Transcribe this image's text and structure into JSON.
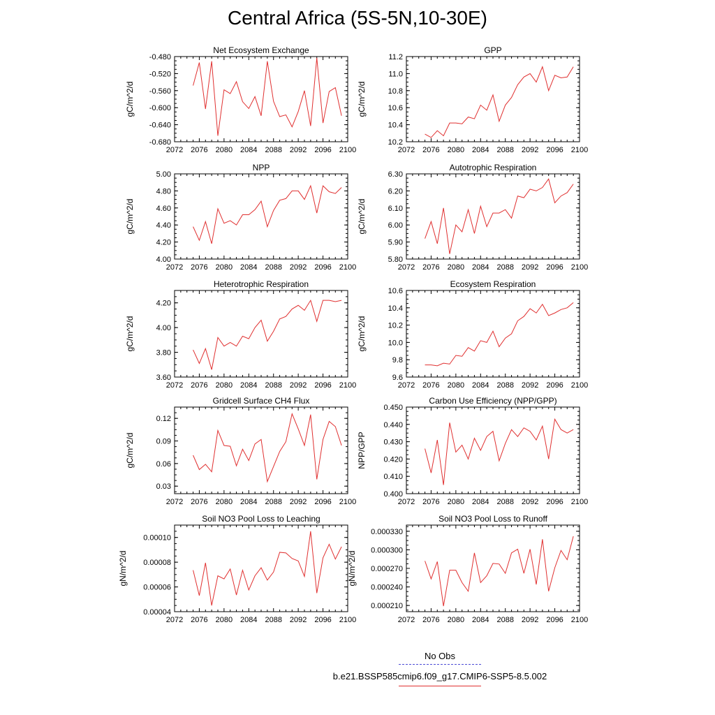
{
  "page": {
    "title": "Central Africa (5S-5N,10-30E)"
  },
  "legend": {
    "items": [
      {
        "label": "No Obs",
        "color": "#4b4bd6",
        "dash": "dashed"
      },
      {
        "label": "b.e21.BSSP585cmip6.f09_g17.CMIP6-SSP5-8.5.002",
        "color": "#e03030",
        "dash": "solid"
      }
    ]
  },
  "chart_data": [
    {
      "type": "line",
      "title": "Net Ecosystem Exchange",
      "ylabel": "gC/m^2/d",
      "xlabel": "",
      "xlim": [
        2072,
        2100
      ],
      "ylim": [
        -0.68,
        -0.48
      ],
      "xticks": [
        "2072",
        "2076",
        "2080",
        "2084",
        "2088",
        "2092",
        "2096",
        "2100"
      ],
      "yticks": [
        "-0.480",
        "-0.520",
        "-0.560",
        "-0.600",
        "-0.640",
        "-0.680"
      ],
      "grid": false,
      "x": [
        2075,
        2076,
        2077,
        2078,
        2079,
        2080,
        2081,
        2082,
        2083,
        2084,
        2085,
        2086,
        2087,
        2088,
        2089,
        2090,
        2091,
        2092,
        2093,
        2094,
        2095,
        2096,
        2097,
        2098,
        2099
      ],
      "series": [
        {
          "color": "#e03030",
          "values": [
            -0.548,
            -0.494,
            -0.603,
            -0.491,
            -0.666,
            -0.558,
            -0.567,
            -0.539,
            -0.586,
            -0.602,
            -0.574,
            -0.619,
            -0.491,
            -0.585,
            -0.621,
            -0.617,
            -0.645,
            -0.609,
            -0.56,
            -0.643,
            -0.483,
            -0.636,
            -0.562,
            -0.553,
            -0.619
          ]
        }
      ]
    },
    {
      "type": "line",
      "title": "GPP",
      "ylabel": "gC/m^2/d",
      "xlabel": "",
      "xlim": [
        2072,
        2100
      ],
      "ylim": [
        10.2,
        11.2
      ],
      "xticks": [
        "2072",
        "2076",
        "2080",
        "2084",
        "2088",
        "2092",
        "2096",
        "2100"
      ],
      "yticks": [
        "11.2",
        "11.0",
        "10.8",
        "10.6",
        "10.4",
        "10.2"
      ],
      "grid": false,
      "x": [
        2075,
        2076,
        2077,
        2078,
        2079,
        2080,
        2081,
        2082,
        2083,
        2084,
        2085,
        2086,
        2087,
        2088,
        2089,
        2090,
        2091,
        2092,
        2093,
        2094,
        2095,
        2096,
        2097,
        2098,
        2099
      ],
      "series": [
        {
          "color": "#e03030",
          "values": [
            10.29,
            10.25,
            10.33,
            10.27,
            10.42,
            10.42,
            10.41,
            10.49,
            10.47,
            10.63,
            10.57,
            10.75,
            10.44,
            10.63,
            10.72,
            10.87,
            10.96,
            11.0,
            10.9,
            11.08,
            10.8,
            10.98,
            10.95,
            10.96,
            11.08
          ]
        }
      ]
    },
    {
      "type": "line",
      "title": "NPP",
      "ylabel": "gC/m^2/d",
      "xlabel": "",
      "xlim": [
        2072,
        2100
      ],
      "ylim": [
        4.0,
        5.0
      ],
      "xticks": [
        "2072",
        "2076",
        "2080",
        "2084",
        "2088",
        "2092",
        "2096",
        "2100"
      ],
      "yticks": [
        "5.00",
        "4.80",
        "4.60",
        "4.40",
        "4.20",
        "4.00"
      ],
      "grid": false,
      "x": [
        2075,
        2076,
        2077,
        2078,
        2079,
        2080,
        2081,
        2082,
        2083,
        2084,
        2085,
        2086,
        2087,
        2088,
        2089,
        2090,
        2091,
        2092,
        2093,
        2094,
        2095,
        2096,
        2097,
        2098,
        2099
      ],
      "series": [
        {
          "color": "#e03030",
          "values": [
            4.38,
            4.22,
            4.44,
            4.18,
            4.59,
            4.42,
            4.45,
            4.4,
            4.52,
            4.52,
            4.58,
            4.68,
            4.38,
            4.57,
            4.69,
            4.71,
            4.8,
            4.8,
            4.7,
            4.86,
            4.54,
            4.86,
            4.79,
            4.77,
            4.84
          ]
        }
      ]
    },
    {
      "type": "line",
      "title": "Autotrophic Respiration",
      "ylabel": "gC/m^2/d",
      "xlabel": "",
      "xlim": [
        2072,
        2100
      ],
      "ylim": [
        5.8,
        6.3
      ],
      "xticks": [
        "2072",
        "2076",
        "2080",
        "2084",
        "2088",
        "2092",
        "2096",
        "2100"
      ],
      "yticks": [
        "6.30",
        "6.20",
        "6.10",
        "6.00",
        "5.90",
        "5.80"
      ],
      "grid": false,
      "x": [
        2075,
        2076,
        2077,
        2078,
        2079,
        2080,
        2081,
        2082,
        2083,
        2084,
        2085,
        2086,
        2087,
        2088,
        2089,
        2090,
        2091,
        2092,
        2093,
        2094,
        2095,
        2096,
        2097,
        2098,
        2099
      ],
      "series": [
        {
          "color": "#e03030",
          "values": [
            5.92,
            6.02,
            5.89,
            6.1,
            5.83,
            6.0,
            5.96,
            6.09,
            5.95,
            6.11,
            5.99,
            6.07,
            6.07,
            6.09,
            6.04,
            6.17,
            6.16,
            6.21,
            6.2,
            6.22,
            6.27,
            6.13,
            6.17,
            6.19,
            6.24
          ]
        }
      ]
    },
    {
      "type": "line",
      "title": "Heterotrophic Respiration",
      "ylabel": "gC/m^2/d",
      "xlabel": "",
      "xlim": [
        2072,
        2100
      ],
      "ylim": [
        3.6,
        4.3
      ],
      "xticks": [
        "2072",
        "2076",
        "2080",
        "2084",
        "2088",
        "2092",
        "2096",
        "2100"
      ],
      "yticks": [
        "4.20",
        "4.00",
        "3.80",
        "3.60"
      ],
      "grid": false,
      "x": [
        2075,
        2076,
        2077,
        2078,
        2079,
        2080,
        2081,
        2082,
        2083,
        2084,
        2085,
        2086,
        2087,
        2088,
        2089,
        2090,
        2091,
        2092,
        2093,
        2094,
        2095,
        2096,
        2097,
        2098,
        2099
      ],
      "series": [
        {
          "color": "#e03030",
          "values": [
            3.82,
            3.71,
            3.83,
            3.66,
            3.92,
            3.85,
            3.88,
            3.85,
            3.93,
            3.91,
            4.0,
            4.06,
            3.89,
            3.97,
            4.07,
            4.09,
            4.15,
            4.18,
            4.14,
            4.22,
            4.05,
            4.22,
            4.22,
            4.21,
            4.22
          ]
        }
      ]
    },
    {
      "type": "line",
      "title": "Ecosystem Respiration",
      "ylabel": "gC/m^2/d",
      "xlabel": "",
      "xlim": [
        2072,
        2100
      ],
      "ylim": [
        9.6,
        10.6
      ],
      "xticks": [
        "2072",
        "2076",
        "2080",
        "2084",
        "2088",
        "2092",
        "2096",
        "2100"
      ],
      "yticks": [
        "10.6",
        "10.4",
        "10.2",
        "10.0",
        "9.8",
        "9.6"
      ],
      "grid": false,
      "x": [
        2075,
        2076,
        2077,
        2078,
        2079,
        2080,
        2081,
        2082,
        2083,
        2084,
        2085,
        2086,
        2087,
        2088,
        2089,
        2090,
        2091,
        2092,
        2093,
        2094,
        2095,
        2096,
        2097,
        2098,
        2099
      ],
      "series": [
        {
          "color": "#e03030",
          "values": [
            9.74,
            9.74,
            9.73,
            9.76,
            9.75,
            9.85,
            9.84,
            9.94,
            9.9,
            10.02,
            10.0,
            10.13,
            9.95,
            10.05,
            10.1,
            10.25,
            10.3,
            10.39,
            10.34,
            10.44,
            10.31,
            10.34,
            10.38,
            10.4,
            10.46
          ]
        }
      ]
    },
    {
      "type": "line",
      "title": "Gridcell Surface CH4 Flux",
      "ylabel": "gC/m^2/d",
      "xlabel": "",
      "xlim": [
        2072,
        2100
      ],
      "ylim": [
        0.02,
        0.135
      ],
      "xticks": [
        "2072",
        "2076",
        "2080",
        "2084",
        "2088",
        "2092",
        "2096",
        "2100"
      ],
      "yticks": [
        "0.12",
        "0.09",
        "0.06",
        "0.03"
      ],
      "grid": false,
      "x": [
        2075,
        2076,
        2077,
        2078,
        2079,
        2080,
        2081,
        2082,
        2083,
        2084,
        2085,
        2086,
        2087,
        2088,
        2089,
        2090,
        2091,
        2092,
        2093,
        2094,
        2095,
        2096,
        2097,
        2098,
        2099
      ],
      "series": [
        {
          "color": "#e03030",
          "values": [
            0.071,
            0.052,
            0.059,
            0.049,
            0.104,
            0.084,
            0.083,
            0.057,
            0.079,
            0.064,
            0.086,
            0.092,
            0.036,
            0.056,
            0.076,
            0.089,
            0.126,
            0.106,
            0.084,
            0.125,
            0.039,
            0.092,
            0.116,
            0.109,
            0.084
          ]
        }
      ]
    },
    {
      "type": "line",
      "title": "Carbon Use Efficiency (NPP/GPP)",
      "ylabel": "NPP/GPP",
      "xlabel": "",
      "xlim": [
        2072,
        2100
      ],
      "ylim": [
        0.4,
        0.45
      ],
      "xticks": [
        "2072",
        "2076",
        "2080",
        "2084",
        "2088",
        "2092",
        "2096",
        "2100"
      ],
      "yticks": [
        "0.450",
        "0.440",
        "0.430",
        "0.420",
        "0.410",
        "0.400"
      ],
      "grid": false,
      "x": [
        2075,
        2076,
        2077,
        2078,
        2079,
        2080,
        2081,
        2082,
        2083,
        2084,
        2085,
        2086,
        2087,
        2088,
        2089,
        2090,
        2091,
        2092,
        2093,
        2094,
        2095,
        2096,
        2097,
        2098,
        2099
      ],
      "series": [
        {
          "color": "#e03030",
          "values": [
            0.426,
            0.412,
            0.431,
            0.405,
            0.441,
            0.424,
            0.428,
            0.42,
            0.432,
            0.425,
            0.433,
            0.436,
            0.419,
            0.429,
            0.437,
            0.433,
            0.438,
            0.436,
            0.431,
            0.439,
            0.42,
            0.443,
            0.437,
            0.435,
            0.437
          ]
        }
      ]
    },
    {
      "type": "line",
      "title": "Soil NO3 Pool Loss to Leaching",
      "ylabel": "gN/m^2/d",
      "xlabel": "",
      "xlim": [
        2072,
        2100
      ],
      "ylim": [
        4e-05,
        0.00011
      ],
      "xticks": [
        "2072",
        "2076",
        "2080",
        "2084",
        "2088",
        "2092",
        "2096",
        "2100"
      ],
      "yticks": [
        "0.00010",
        "0.00008",
        "0.00006",
        "0.00004"
      ],
      "grid": false,
      "x": [
        2075,
        2076,
        2077,
        2078,
        2079,
        2080,
        2081,
        2082,
        2083,
        2084,
        2085,
        2086,
        2087,
        2088,
        2089,
        2090,
        2091,
        2092,
        2093,
        2094,
        2095,
        2096,
        2097,
        2098,
        2099
      ],
      "series": [
        {
          "color": "#e03030",
          "values": [
            7.35e-05,
            5.3e-05,
            7.95e-05,
            4.5e-05,
            6.9e-05,
            6.65e-05,
            7.45e-05,
            5.35e-05,
            7.35e-05,
            5.75e-05,
            6.9e-05,
            7.55e-05,
            6.55e-05,
            7.2e-05,
            8.8e-05,
            8.75e-05,
            8.3e-05,
            8.1e-05,
            6.85e-05,
            0.000105,
            5.5e-05,
            8.35e-05,
            9.45e-05,
            8.25e-05,
            9.25e-05
          ]
        }
      ]
    },
    {
      "type": "line",
      "title": "Soil NO3 Pool Loss to Runoff",
      "ylabel": "gN/m^2/d",
      "xlabel": "",
      "xlim": [
        2072,
        2100
      ],
      "ylim": [
        0.0002,
        0.00034
      ],
      "xticks": [
        "2072",
        "2076",
        "2080",
        "2084",
        "2088",
        "2092",
        "2096",
        "2100"
      ],
      "yticks": [
        "0.000330",
        "0.000300",
        "0.000270",
        "0.000240",
        "0.000210"
      ],
      "grid": false,
      "x": [
        2075,
        2076,
        2077,
        2078,
        2079,
        2080,
        2081,
        2082,
        2083,
        2084,
        2085,
        2086,
        2087,
        2088,
        2089,
        2090,
        2091,
        2092,
        2093,
        2094,
        2095,
        2096,
        2097,
        2098,
        2099
      ],
      "series": [
        {
          "color": "#e03030",
          "values": [
            0.000282,
            0.000253,
            0.000281,
            0.000209,
            0.000267,
            0.000267,
            0.000247,
            0.000233,
            0.000295,
            0.000247,
            0.000258,
            0.000278,
            0.000277,
            0.000262,
            0.000295,
            0.000301,
            0.000262,
            0.000301,
            0.000244,
            0.000317,
            0.000233,
            0.000271,
            0.000299,
            0.000284,
            0.000322
          ]
        }
      ]
    }
  ]
}
